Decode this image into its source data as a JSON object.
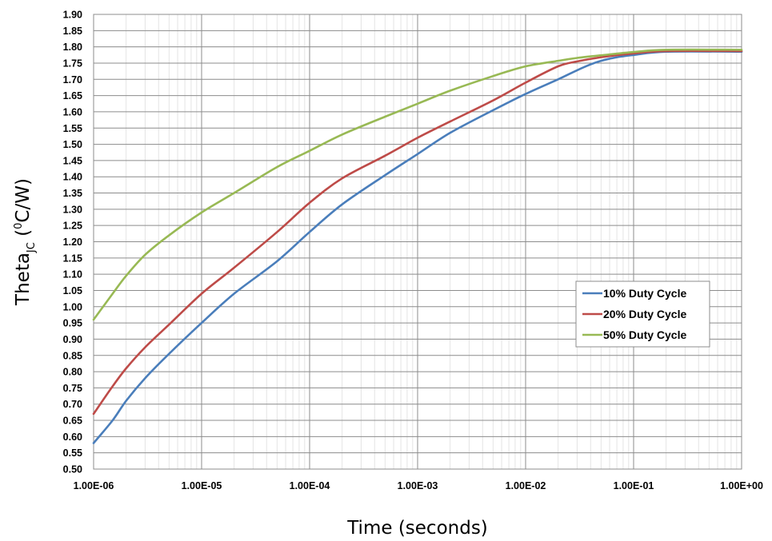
{
  "chart_data": {
    "type": "line",
    "xlabel": "Time (seconds)",
    "ylabel": {
      "main": "Theta",
      "subscript": "JC",
      "unit_open": " (",
      "superscript": "0",
      "unit_close": "C/W)"
    },
    "x_scale": "log",
    "xlim": [
      1e-06,
      1
    ],
    "ylim": [
      0.5,
      1.9
    ],
    "grid": true,
    "legend_position": "right-middle",
    "x_tick_labels": [
      "1.00E-06",
      "1.00E-05",
      "1.00E-04",
      "1.00E-03",
      "1.00E-02",
      "1.00E-01",
      "1.00E+00"
    ],
    "y_tick_labels": [
      "0.50",
      "0.55",
      "0.60",
      "0.65",
      "0.70",
      "0.75",
      "0.80",
      "0.85",
      "0.90",
      "0.95",
      "1.00",
      "1.05",
      "1.10",
      "1.15",
      "1.20",
      "1.25",
      "1.30",
      "1.35",
      "1.40",
      "1.45",
      "1.50",
      "1.55",
      "1.60",
      "1.65",
      "1.70",
      "1.75",
      "1.80",
      "1.85",
      "1.90"
    ],
    "series": [
      {
        "name": "10% Duty Cycle",
        "color": "#4a7ebb",
        "x": [
          1e-06,
          1.5e-06,
          2e-06,
          3e-06,
          5e-06,
          1e-05,
          2e-05,
          5e-05,
          0.0001,
          0.0002,
          0.0005,
          0.001,
          0.002,
          0.005,
          0.01,
          0.02,
          0.03,
          0.04,
          0.05,
          0.07,
          0.1,
          0.2,
          1
        ],
        "y": [
          0.58,
          0.65,
          0.71,
          0.78,
          0.855,
          0.95,
          1.04,
          1.14,
          1.23,
          1.315,
          1.405,
          1.47,
          1.535,
          1.605,
          1.655,
          1.7,
          1.728,
          1.746,
          1.757,
          1.768,
          1.775,
          1.785,
          1.785
        ]
      },
      {
        "name": "20% Duty Cycle",
        "color": "#be4b48",
        "x": [
          1e-06,
          1.5e-06,
          2e-06,
          3e-06,
          5e-06,
          1e-05,
          2e-05,
          5e-05,
          0.0001,
          0.0002,
          0.0005,
          0.001,
          0.002,
          0.005,
          0.01,
          0.02,
          0.03,
          0.05,
          0.1,
          0.2,
          1
        ],
        "y": [
          0.67,
          0.755,
          0.81,
          0.875,
          0.945,
          1.04,
          1.12,
          1.23,
          1.32,
          1.395,
          1.465,
          1.52,
          1.57,
          1.635,
          1.69,
          1.74,
          1.755,
          1.768,
          1.78,
          1.787,
          1.787
        ]
      },
      {
        "name": "50% Duty Cycle",
        "color": "#98b954",
        "x": [
          1e-06,
          1.5e-06,
          2e-06,
          3e-06,
          5e-06,
          1e-05,
          2e-05,
          5e-05,
          0.0001,
          0.0002,
          0.0005,
          0.001,
          0.002,
          0.005,
          0.01,
          0.02,
          0.03,
          0.05,
          0.1,
          0.2,
          1
        ],
        "y": [
          0.96,
          1.04,
          1.095,
          1.16,
          1.22,
          1.29,
          1.35,
          1.43,
          1.48,
          1.53,
          1.585,
          1.625,
          1.665,
          1.71,
          1.74,
          1.757,
          1.766,
          1.774,
          1.784,
          1.791,
          1.791
        ]
      }
    ]
  }
}
